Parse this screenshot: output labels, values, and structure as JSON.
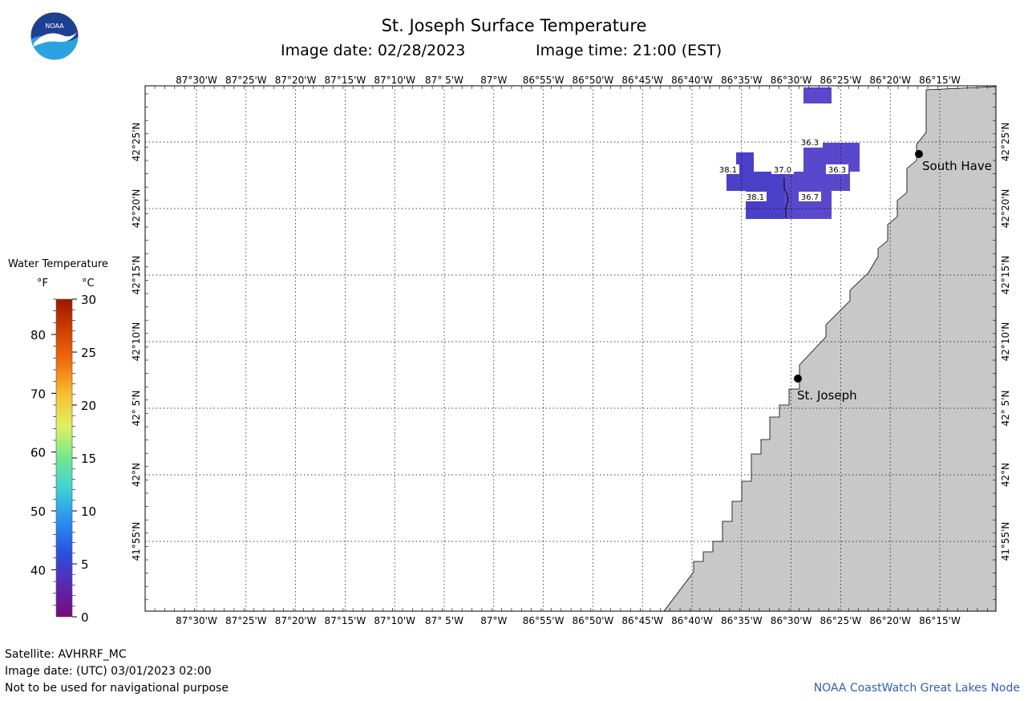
{
  "header": {
    "title": "St. Joseph Surface Temperature",
    "image_date": "Image date: 02/28/2023",
    "image_time": "Image time: 21:00 (EST)"
  },
  "logo": {
    "text": "NOAA",
    "colors": {
      "top": "#1f3f93",
      "bottom": "#2aa3e0",
      "bird": "#ffffff"
    }
  },
  "map": {
    "lon_labels": [
      "87°30'W",
      "87°25'W",
      "87°20'W",
      "87°15'W",
      "87°10'W",
      "87° 5'W",
      "87°W",
      "86°55'W",
      "86°50'W",
      "86°45'W",
      "86°40'W",
      "86°35'W",
      "86°30'W",
      "86°25'W",
      "86°20'W",
      "86°15'W"
    ],
    "lat_labels": [
      "42°25'N",
      "42°20'N",
      "42°15'N",
      "42°10'N",
      "42° 5'N",
      "42°N",
      "41°55'N"
    ],
    "colors": {
      "land": "#c8c8c8",
      "water": "#ffffff",
      "grid": "#000000",
      "cold_cell": "#4a40c8",
      "mid_cell": "#5a48cc"
    },
    "cities": [
      {
        "name": "St. Joseph"
      },
      {
        "name": "South Have"
      }
    ],
    "temperature_labels": [
      "36.3",
      "38.1",
      "37.0",
      "36.3",
      "38.1",
      "36.7"
    ]
  },
  "legend": {
    "title": "Water Temperature",
    "unit_f": "°F",
    "unit_c": "°C",
    "f_ticks": [
      "80",
      "70",
      "60",
      "50",
      "40"
    ],
    "c_ticks": [
      "30",
      "25",
      "20",
      "15",
      "10",
      "5",
      "0"
    ],
    "colorscale": [
      "#7a0a7a",
      "#5a28b0",
      "#2a50e0",
      "#2a8ef0",
      "#40d0d8",
      "#70e890",
      "#e0f060",
      "#f8c030",
      "#f07010",
      "#d04000",
      "#9a1800"
    ]
  },
  "footer": {
    "satellite": "Satellite: AVHRRF_MC",
    "utc_date": "Image date: (UTC) 03/01/2023  02:00",
    "disclaimer": "Not to be used for navigational purpose",
    "credit": "NOAA CoastWatch Great Lakes Node"
  }
}
